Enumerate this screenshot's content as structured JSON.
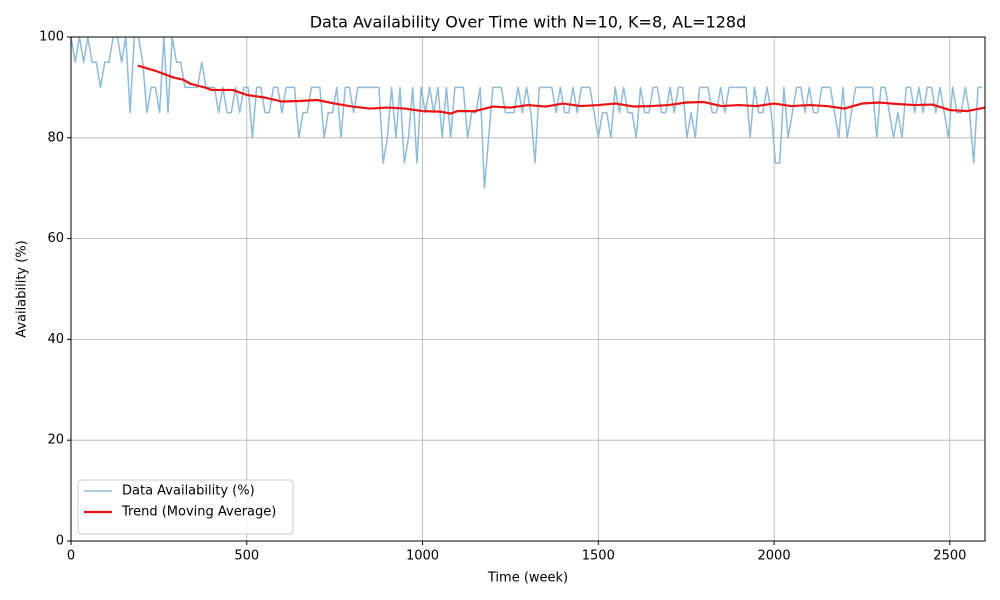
{
  "chart_data": {
    "type": "line",
    "title": "Data Availability Over Time with N=10, K=8, AL=128d",
    "x_label": "Time (week)",
    "y_label": "Availability (%)",
    "xlim": [
      0,
      2600
    ],
    "xticks": [
      0,
      500,
      1000,
      1500,
      2000,
      2500
    ],
    "ylim": [
      0,
      100
    ],
    "yticks": [
      0,
      20,
      40,
      60,
      80,
      100
    ],
    "grid": true,
    "legend": "lower left",
    "series": [
      {
        "name": "Data Availability (%)",
        "color": "#8fbbd9",
        "width": 1.5,
        "x": [
          0,
          12,
          24,
          36,
          48,
          60,
          72,
          84,
          96,
          108,
          120,
          132,
          144,
          156,
          168,
          180,
          192,
          204,
          216,
          228,
          240,
          252,
          264,
          276,
          288,
          300,
          312,
          324,
          336,
          348,
          360,
          372,
          384,
          396,
          408,
          420,
          432,
          444,
          456,
          468,
          480,
          492,
          504,
          516,
          528,
          540,
          552,
          564,
          576,
          588,
          600,
          612,
          624,
          636,
          648,
          660,
          672,
          684,
          696,
          708,
          720,
          732,
          744,
          756,
          768,
          780,
          792,
          804,
          816,
          828,
          840,
          852,
          864,
          876,
          888,
          900,
          912,
          924,
          936,
          948,
          960,
          972,
          984,
          996,
          1008,
          1020,
          1032,
          1044,
          1056,
          1068,
          1080,
          1092,
          1104,
          1116,
          1128,
          1140,
          1152,
          1164,
          1176,
          1188,
          1200,
          1212,
          1224,
          1236,
          1248,
          1260,
          1272,
          1284,
          1296,
          1308,
          1320,
          1332,
          1344,
          1356,
          1368,
          1380,
          1392,
          1404,
          1416,
          1428,
          1440,
          1452,
          1464,
          1476,
          1488,
          1500,
          1512,
          1524,
          1536,
          1548,
          1560,
          1572,
          1584,
          1596,
          1608,
          1620,
          1632,
          1644,
          1656,
          1668,
          1680,
          1692,
          1704,
          1716,
          1728,
          1740,
          1752,
          1764,
          1776,
          1788,
          1800,
          1812,
          1824,
          1836,
          1848,
          1860,
          1872,
          1884,
          1896,
          1908,
          1920,
          1932,
          1944,
          1956,
          1968,
          1980,
          1992,
          2004,
          2016,
          2028,
          2040,
          2052,
          2064,
          2076,
          2088,
          2100,
          2112,
          2124,
          2136,
          2148,
          2160,
          2172,
          2184,
          2196,
          2208,
          2220,
          2232,
          2244,
          2256,
          2268,
          2280,
          2292,
          2304,
          2316,
          2328,
          2340,
          2352,
          2364,
          2376,
          2388,
          2400,
          2412,
          2424,
          2436,
          2448,
          2460,
          2472,
          2484,
          2496,
          2508,
          2520,
          2532,
          2544,
          2556,
          2568,
          2580,
          2592
        ],
        "values": [
          100,
          95,
          100,
          95,
          100,
          95,
          95,
          90,
          95,
          95,
          100,
          100,
          95,
          100,
          85,
          100,
          100,
          95,
          85,
          90,
          90,
          85,
          100,
          85,
          100,
          95,
          95,
          90,
          90,
          90,
          90,
          95,
          90,
          90,
          90,
          85,
          90,
          85,
          85,
          90,
          85,
          90,
          90,
          80,
          90,
          90,
          85,
          85,
          90,
          90,
          85,
          90,
          90,
          90,
          80,
          85,
          85,
          90,
          90,
          90,
          80,
          85,
          85,
          90,
          80,
          90,
          90,
          85,
          90,
          90,
          90,
          90,
          90,
          90,
          75,
          80,
          90,
          80,
          90,
          75,
          80,
          90,
          75,
          90,
          85,
          90,
          85,
          90,
          80,
          90,
          80,
          90,
          90,
          90,
          80,
          85,
          85,
          90,
          70,
          80,
          90,
          90,
          90,
          85,
          85,
          85,
          90,
          85,
          90,
          85,
          75,
          90,
          90,
          90,
          90,
          85,
          90,
          85,
          85,
          90,
          85,
          90,
          90,
          90,
          85,
          80,
          85,
          85,
          80,
          90,
          85,
          90,
          85,
          85,
          80,
          90,
          85,
          85,
          90,
          90,
          85,
          85,
          90,
          85,
          90,
          90,
          80,
          85,
          80,
          90,
          90,
          90,
          85,
          85,
          90,
          85,
          90,
          90,
          90,
          90,
          90,
          80,
          90,
          85,
          85,
          90,
          85,
          75,
          75,
          90,
          80,
          85,
          90,
          90,
          85,
          90,
          85,
          85,
          90,
          90,
          90,
          85,
          80,
          90,
          80,
          85,
          90,
          90,
          90,
          90,
          90,
          80,
          90,
          90,
          85,
          80,
          85,
          80,
          90,
          90,
          85,
          90,
          85,
          90,
          90,
          85,
          90,
          85,
          80,
          90,
          85,
          85,
          90,
          85,
          75,
          90,
          90
        ]
      },
      {
        "name": "Trend (Moving Average)",
        "color": "#ee1111",
        "width": 2.2,
        "x": [
          190,
          240,
          290,
          320,
          340,
          380,
          400,
          460,
          500,
          550,
          600,
          650,
          700,
          750,
          800,
          850,
          900,
          950,
          1000,
          1050,
          1080,
          1100,
          1150,
          1200,
          1250,
          1300,
          1350,
          1400,
          1450,
          1500,
          1550,
          1600,
          1650,
          1700,
          1750,
          1800,
          1850,
          1900,
          1950,
          2000,
          2050,
          2100,
          2150,
          2200,
          2250,
          2300,
          2350,
          2400,
          2450,
          2500,
          2550,
          2600
        ],
        "values": [
          94.3,
          93.3,
          92,
          91.5,
          90.7,
          90,
          89.5,
          89.5,
          88.5,
          88,
          87.2,
          87.3,
          87.5,
          86.8,
          86.2,
          85.8,
          86,
          85.8,
          85.3,
          85.2,
          84.8,
          85.3,
          85.3,
          86.2,
          86,
          86.5,
          86.2,
          86.8,
          86.3,
          86.5,
          86.8,
          86.2,
          86.3,
          86.5,
          87,
          87.1,
          86.3,
          86.5,
          86.3,
          86.8,
          86.3,
          86.5,
          86.3,
          85.8,
          86.8,
          87,
          86.7,
          86.5,
          86.6,
          85.5,
          85.3,
          86
        ]
      }
    ]
  }
}
